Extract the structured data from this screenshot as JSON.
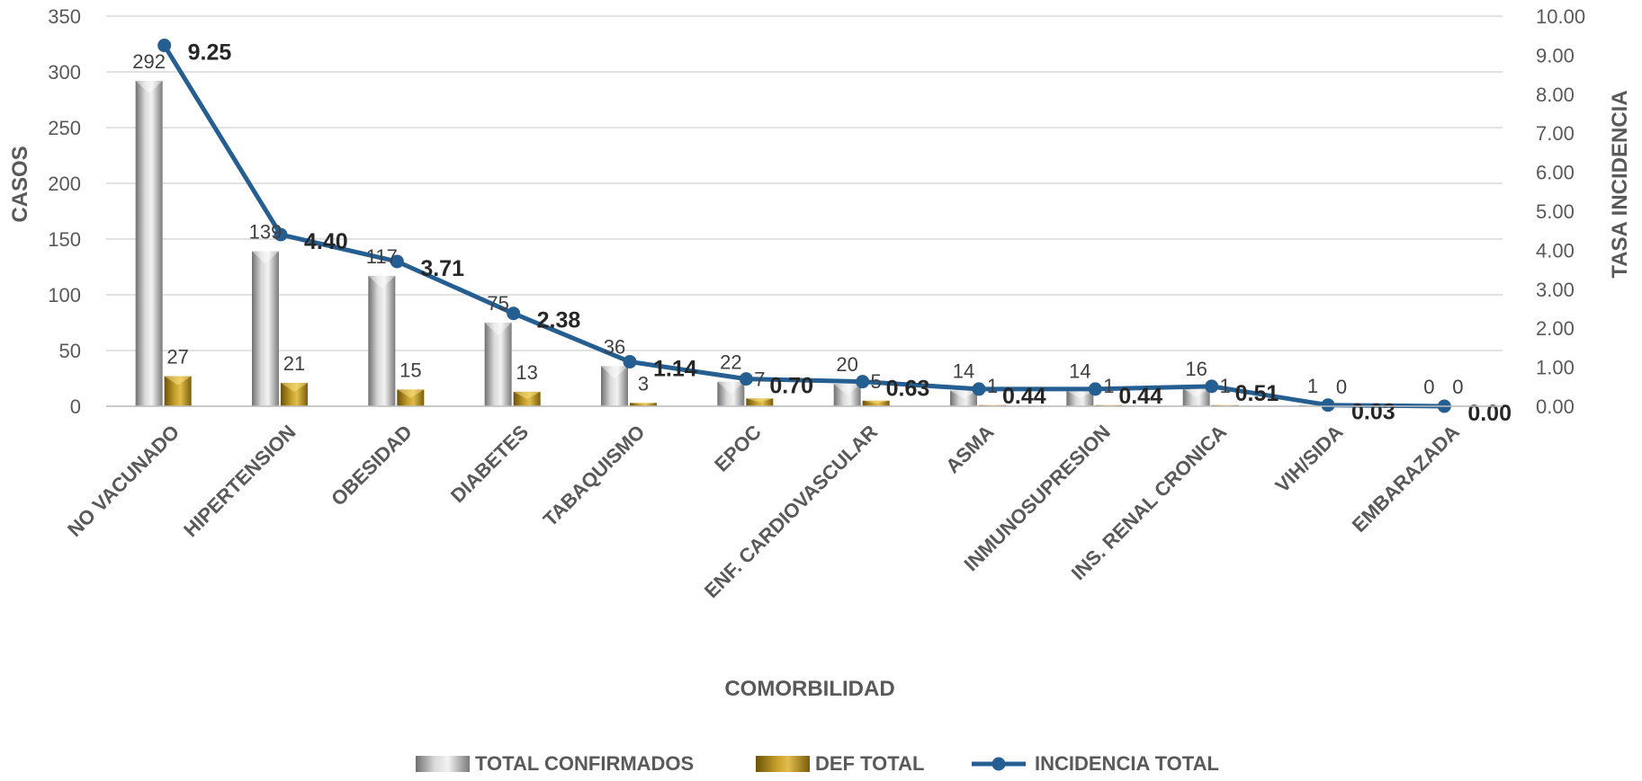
{
  "chart_data": {
    "type": "bar",
    "xlabel": "COMORBILIDAD",
    "ylabel": "CASOS",
    "y2label": "TASA INCIDENCIA",
    "ylim": [
      0,
      350
    ],
    "y2lim": [
      0,
      10
    ],
    "yticks": [
      "0",
      "50",
      "100",
      "150",
      "200",
      "250",
      "300",
      "350"
    ],
    "y2ticks": [
      "0.00",
      "1.00",
      "2.00",
      "3.00",
      "4.00",
      "5.00",
      "6.00",
      "7.00",
      "8.00",
      "9.00",
      "10.00"
    ],
    "grid": true,
    "legend_position": "bottom",
    "categories": [
      "NO VACUNADO",
      "HIPERTENSION",
      "OBESIDAD",
      "DIABETES",
      "TABAQUISMO",
      "EPOC",
      "ENF. CARDIOVASCULAR",
      "ASMA",
      "INMUNOSUPRESION",
      "INS. RENAL CRONICA",
      "VIH/SIDA",
      "EMBARAZADA"
    ],
    "series": [
      {
        "name": "TOTAL CONFIRMADOS",
        "type": "bar",
        "axis": "left",
        "color": "#9e9e9e",
        "values": [
          292,
          139,
          117,
          75,
          36,
          22,
          20,
          14,
          14,
          16,
          1,
          0
        ],
        "labels": [
          "292",
          "139",
          "117",
          "75",
          "36",
          "22",
          "20",
          "14",
          "14",
          "16",
          "1",
          "0"
        ]
      },
      {
        "name": "DEF TOTAL",
        "type": "bar",
        "axis": "left",
        "color": "#a07d17",
        "values": [
          27,
          21,
          15,
          13,
          3,
          7,
          5,
          1,
          1,
          1,
          0,
          0
        ],
        "labels": [
          "27",
          "21",
          "15",
          "13",
          "3",
          "7",
          "5",
          "1",
          "1",
          "1",
          "0",
          "0"
        ]
      },
      {
        "name": "INCIDENCIA TOTAL",
        "type": "line",
        "axis": "right",
        "color": "#255e91",
        "values": [
          9.25,
          4.4,
          3.71,
          2.38,
          1.14,
          0.7,
          0.63,
          0.44,
          0.44,
          0.51,
          0.03,
          0.0
        ],
        "labels": [
          "9.25",
          "4.40",
          "3.71",
          "2.38",
          "1.14",
          "0.70",
          "0.63",
          "0.44",
          "0.44",
          "0.51",
          "0.03",
          "0.00"
        ]
      }
    ]
  }
}
